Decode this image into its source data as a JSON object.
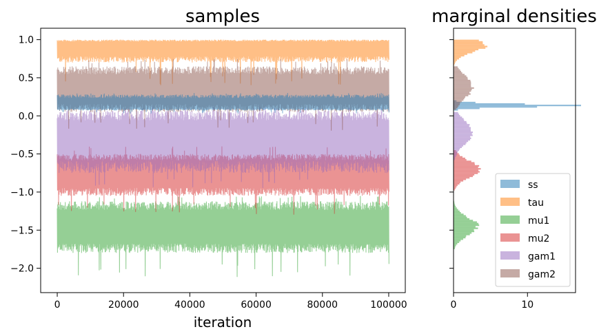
{
  "chart_data": [
    {
      "type": "line",
      "title": "samples",
      "xlabel": "iteration",
      "ylabel": "",
      "xlim": [
        -5000,
        105000
      ],
      "ylim": [
        -2.32,
        1.15
      ],
      "x_ticks": [
        0,
        20000,
        40000,
        60000,
        80000,
        100000
      ],
      "x_tick_labels": [
        "0",
        "20000",
        "40000",
        "60000",
        "80000",
        "100000"
      ],
      "y_ticks": [
        1.0,
        0.5,
        0.0,
        -0.5,
        -1.0,
        -1.5,
        -2.0
      ],
      "y_tick_labels": [
        "1.0",
        "0.5",
        "0.0",
        "−0.5",
        "−1.0",
        "−1.5",
        "−2.0"
      ],
      "grid": false,
      "x": [
        0,
        100000
      ],
      "series": [
        {
          "name": "ss",
          "color": "#1f77b4",
          "band_min": 0.07,
          "band_max": 0.28,
          "mean": 0.14,
          "extreme_low": 0.03,
          "extreme_high": 0.3
        },
        {
          "name": "tau",
          "color": "#ff7f0e",
          "band_min": 0.7,
          "band_max": 1.0,
          "mean": 0.93,
          "extreme_low": 0.4,
          "extreme_high": 1.0
        },
        {
          "name": "mu1",
          "color": "#2ca02c",
          "band_min": -1.8,
          "band_max": -1.12,
          "mean": -1.45,
          "extreme_low": -2.15,
          "extreme_high": -1.05
        },
        {
          "name": "mu2",
          "color": "#d62728",
          "band_min": -1.05,
          "band_max": -0.5,
          "mean": -0.75,
          "extreme_low": -1.3,
          "extreme_high": -0.4
        },
        {
          "name": "gam1",
          "color": "#9467bd",
          "band_min": -0.75,
          "band_max": 0.07,
          "mean": -0.3,
          "extreme_low": -0.95,
          "extreme_high": 0.12
        },
        {
          "name": "gam2",
          "color": "#8c564b",
          "band_min": 0.05,
          "band_max": 0.65,
          "mean": 0.35,
          "extreme_low": -0.2,
          "extreme_high": 0.75
        }
      ]
    },
    {
      "type": "histogram",
      "orientation": "horizontal",
      "title": "marginal densities",
      "xlabel": "",
      "ylabel": "",
      "xlim": [
        0,
        16.5
      ],
      "ylim": [
        -2.32,
        1.15
      ],
      "x_ticks": [
        0,
        10
      ],
      "x_tick_labels": [
        "0",
        "10"
      ],
      "shares_y_with": "samples",
      "legend_position": "lower-right",
      "legend": [
        "ss",
        "tau",
        "mu1",
        "mu2",
        "gam1",
        "gam2"
      ],
      "series": [
        {
          "name": "ss",
          "color": "#1f77b4",
          "mode": 0.135,
          "peak_density": 16.0,
          "sd": 0.022,
          "range": [
            0.05,
            0.3
          ]
        },
        {
          "name": "tau",
          "color": "#ff7f0e",
          "mode": 0.93,
          "peak_density": 4.3,
          "sd": 0.095,
          "range": [
            0.6,
            1.0
          ]
        },
        {
          "name": "mu1",
          "color": "#2ca02c",
          "mode": -1.45,
          "peak_density": 3.2,
          "sd": 0.12,
          "range": [
            -1.75,
            -1.1
          ]
        },
        {
          "name": "mu2",
          "color": "#d62728",
          "mode": -0.7,
          "peak_density": 3.5,
          "sd": 0.11,
          "range": [
            -0.98,
            -0.45
          ]
        },
        {
          "name": "gam1",
          "color": "#9467bd",
          "mode": -0.22,
          "peak_density": 2.6,
          "sd": 0.15,
          "range": [
            -0.58,
            0.05
          ]
        },
        {
          "name": "gam2",
          "color": "#8c564b",
          "mode": 0.38,
          "peak_density": 2.6,
          "sd": 0.15,
          "range": [
            0.08,
            0.65
          ]
        }
      ]
    }
  ]
}
